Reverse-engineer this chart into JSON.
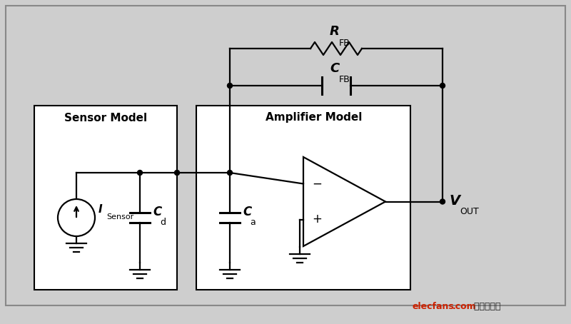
{
  "bg_color": "#cecece",
  "line_color": "#000000",
  "fig_width": 8.0,
  "fig_height": 4.54,
  "dpi": 100,
  "sensor_label": "Sensor Model",
  "amp_label": "Amplifier Model",
  "R_label": "R",
  "R_sub": "FB",
  "C_label": "C",
  "C_sub": "FB",
  "I_label": "I",
  "I_sub": "Sensor",
  "Cd_label": "C",
  "Cd_sub": "d",
  "Ca_label": "C",
  "Ca_sub": "a",
  "Vout_label": "V",
  "Vout_sub": "OUT",
  "watermark_red": "elecfans",
  "watermark_dot": ".",
  "watermark_red2": "com",
  "watermark_black": " 电子发烧友"
}
